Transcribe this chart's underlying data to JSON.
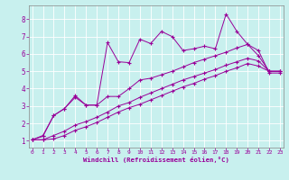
{
  "xlabel": "Windchill (Refroidissement éolien,°C)",
  "bg_color": "#c8f0ee",
  "line_color": "#990099",
  "grid_color": "#b0d8d8",
  "x_data": [
    0,
    1,
    2,
    3,
    4,
    5,
    6,
    7,
    8,
    9,
    10,
    11,
    12,
    13,
    14,
    15,
    16,
    17,
    18,
    19,
    20,
    21,
    22,
    23
  ],
  "series1": [
    1.05,
    1.3,
    2.45,
    2.85,
    3.6,
    3.05,
    3.05,
    6.65,
    5.55,
    5.5,
    6.85,
    6.6,
    7.3,
    7.0,
    6.2,
    6.3,
    6.45,
    6.3,
    8.3,
    7.3,
    6.55,
    6.2,
    4.9,
    4.9
  ],
  "series2": [
    1.05,
    1.25,
    2.45,
    2.85,
    3.5,
    3.05,
    3.05,
    3.55,
    3.55,
    4.0,
    4.5,
    4.6,
    4.8,
    5.0,
    5.25,
    5.5,
    5.7,
    5.9,
    6.1,
    6.35,
    6.55,
    5.9,
    5.0,
    5.0
  ],
  "series3": [
    1.05,
    1.05,
    1.3,
    1.55,
    1.9,
    2.1,
    2.35,
    2.65,
    3.0,
    3.2,
    3.5,
    3.75,
    4.0,
    4.25,
    4.5,
    4.7,
    4.9,
    5.1,
    5.35,
    5.55,
    5.75,
    5.6,
    5.0,
    5.0
  ],
  "series4": [
    1.05,
    1.05,
    1.1,
    1.3,
    1.6,
    1.8,
    2.05,
    2.35,
    2.65,
    2.9,
    3.1,
    3.35,
    3.6,
    3.85,
    4.1,
    4.3,
    4.55,
    4.75,
    5.0,
    5.2,
    5.45,
    5.3,
    5.0,
    5.0
  ],
  "xlim": [
    -0.3,
    23.3
  ],
  "ylim": [
    0.6,
    8.8
  ],
  "xticks": [
    0,
    1,
    2,
    3,
    4,
    5,
    6,
    7,
    8,
    9,
    10,
    11,
    12,
    13,
    14,
    15,
    16,
    17,
    18,
    19,
    20,
    21,
    22,
    23
  ],
  "yticks": [
    1,
    2,
    3,
    4,
    5,
    6,
    7,
    8
  ]
}
